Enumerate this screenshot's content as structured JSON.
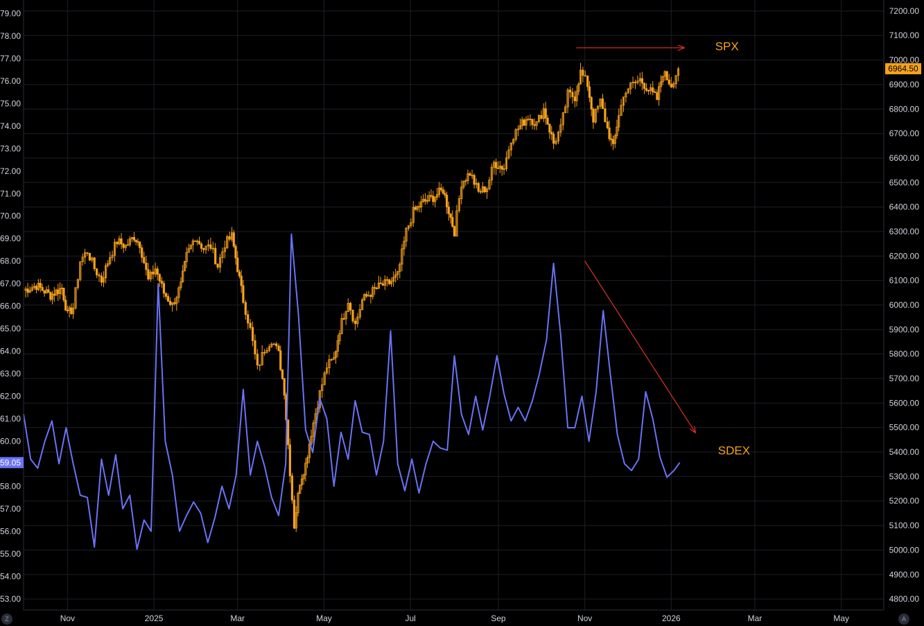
{
  "colors": {
    "background": "#000000",
    "grid": "#1c1f26",
    "axis_text": "#d1d4dc",
    "spx": "#f7a21b",
    "sdex": "#6a73f5",
    "arrow": "#e0302a",
    "spx_label_bg": "#f7a21b",
    "sdex_label_bg": "#6a73f5"
  },
  "corner_buttons": {
    "left": "Z",
    "right": "A"
  },
  "chart_data": {
    "type": "line",
    "x_ticks": [
      "Nov",
      "2025",
      "Mar",
      "May",
      "Jul",
      "Sep",
      "Nov",
      "2026",
      "Mar",
      "May"
    ],
    "x_tick_dates": [
      "2024-11-01",
      "2025-01-01",
      "2025-03-01",
      "2025-05-01",
      "2025-07-01",
      "2025-09-01",
      "2025-11-01",
      "2026-01-01",
      "2026-03-01",
      "2026-05-01"
    ],
    "left_axis": {
      "ticks": [
        "79.00",
        "78.00",
        "77.00",
        "76.00",
        "75.00",
        "74.00",
        "73.00",
        "72.00",
        "71.00",
        "70.00",
        "69.00",
        "68.00",
        "67.00",
        "66.00",
        "65.00",
        "64.00",
        "63.00",
        "62.00",
        "61.00",
        "60.00",
        "59.00",
        "58.00",
        "57.00",
        "56.00",
        "55.00",
        "54.00",
        "53.00"
      ],
      "ylim": [
        52.5,
        79.6
      ],
      "last_value_label": "59.05"
    },
    "right_axis": {
      "ticks": [
        "7200.00",
        "7100.00",
        "7000.00",
        "6900.00",
        "6800.00",
        "6700.00",
        "6600.00",
        "6500.00",
        "6400.00",
        "6300.00",
        "6200.00",
        "6100.00",
        "6000.00",
        "5900.00",
        "5800.00",
        "5700.00",
        "5600.00",
        "5500.00",
        "5400.00",
        "5300.00",
        "5200.00",
        "5100.00",
        "5000.00",
        "4900.00",
        "4800.00"
      ],
      "ylim": [
        4755,
        7245
      ],
      "last_value_label": "6964.50"
    },
    "series": [
      {
        "name": "SPX",
        "axis": "right",
        "style": "candles",
        "points": [
          [
            "2024-10-01",
            6060
          ],
          [
            "2024-10-10",
            6080
          ],
          [
            "2024-10-20",
            6040
          ],
          [
            "2024-10-28",
            6070
          ],
          [
            "2024-11-01",
            5960
          ],
          [
            "2024-11-05",
            5990
          ],
          [
            "2024-11-10",
            6180
          ],
          [
            "2024-11-15",
            6220
          ],
          [
            "2024-11-20",
            6150
          ],
          [
            "2024-11-25",
            6100
          ],
          [
            "2024-12-01",
            6200
          ],
          [
            "2024-12-06",
            6260
          ],
          [
            "2024-12-12",
            6240
          ],
          [
            "2024-12-18",
            6280
          ],
          [
            "2024-12-22",
            6250
          ],
          [
            "2024-12-28",
            6100
          ],
          [
            "2025-01-02",
            6150
          ],
          [
            "2025-01-08",
            6050
          ],
          [
            "2025-01-14",
            6000
          ],
          [
            "2025-01-20",
            6080
          ],
          [
            "2025-01-24",
            6200
          ],
          [
            "2025-01-30",
            6280
          ],
          [
            "2025-02-05",
            6230
          ],
          [
            "2025-02-10",
            6240
          ],
          [
            "2025-02-15",
            6160
          ],
          [
            "2025-02-20",
            6250
          ],
          [
            "2025-02-25",
            6280
          ],
          [
            "2025-03-01",
            6150
          ],
          [
            "2025-03-05",
            6020
          ],
          [
            "2025-03-10",
            5900
          ],
          [
            "2025-03-15",
            5740
          ],
          [
            "2025-03-20",
            5820
          ],
          [
            "2025-03-25",
            5860
          ],
          [
            "2025-03-30",
            5800
          ],
          [
            "2025-04-03",
            5650
          ],
          [
            "2025-04-07",
            5320
          ],
          [
            "2025-04-10",
            5100
          ],
          [
            "2025-04-14",
            5280
          ],
          [
            "2025-04-18",
            5350
          ],
          [
            "2025-04-22",
            5480
          ],
          [
            "2025-04-28",
            5640
          ],
          [
            "2025-05-03",
            5750
          ],
          [
            "2025-05-08",
            5780
          ],
          [
            "2025-05-12",
            5900
          ],
          [
            "2025-05-18",
            6020
          ],
          [
            "2025-05-23",
            5920
          ],
          [
            "2025-05-28",
            6020
          ],
          [
            "2025-06-03",
            6050
          ],
          [
            "2025-06-10",
            6080
          ],
          [
            "2025-06-16",
            6090
          ],
          [
            "2025-06-22",
            6120
          ],
          [
            "2025-06-28",
            6300
          ],
          [
            "2025-07-03",
            6380
          ],
          [
            "2025-07-10",
            6420
          ],
          [
            "2025-07-17",
            6440
          ],
          [
            "2025-07-24",
            6470
          ],
          [
            "2025-08-01",
            6300
          ],
          [
            "2025-08-06",
            6500
          ],
          [
            "2025-08-12",
            6540
          ],
          [
            "2025-08-18",
            6460
          ],
          [
            "2025-08-24",
            6480
          ],
          [
            "2025-08-29",
            6580
          ],
          [
            "2025-09-05",
            6560
          ],
          [
            "2025-09-10",
            6680
          ],
          [
            "2025-09-15",
            6720
          ],
          [
            "2025-09-22",
            6770
          ],
          [
            "2025-09-28",
            6740
          ],
          [
            "2025-10-03",
            6800
          ],
          [
            "2025-10-10",
            6660
          ],
          [
            "2025-10-15",
            6720
          ],
          [
            "2025-10-20",
            6860
          ],
          [
            "2025-10-25",
            6850
          ],
          [
            "2025-10-29",
            6950
          ],
          [
            "2025-11-03",
            6900
          ],
          [
            "2025-11-07",
            6760
          ],
          [
            "2025-11-12",
            6830
          ],
          [
            "2025-11-17",
            6720
          ],
          [
            "2025-11-21",
            6640
          ],
          [
            "2025-11-25",
            6780
          ],
          [
            "2025-11-30",
            6880
          ],
          [
            "2025-12-05",
            6900
          ],
          [
            "2025-12-10",
            6920
          ],
          [
            "2025-12-16",
            6880
          ],
          [
            "2025-12-22",
            6840
          ],
          [
            "2025-12-26",
            6950
          ],
          [
            "2026-01-01",
            6900
          ],
          [
            "2026-01-06",
            6964.5
          ]
        ]
      },
      {
        "name": "SDEX",
        "axis": "left",
        "style": "line",
        "points": [
          [
            "2024-10-01",
            61.2
          ],
          [
            "2024-10-06",
            59.2
          ],
          [
            "2024-10-11",
            58.8
          ],
          [
            "2024-10-16",
            60.0
          ],
          [
            "2024-10-21",
            60.9
          ],
          [
            "2024-10-26",
            59.0
          ],
          [
            "2024-10-31",
            60.6
          ],
          [
            "2024-11-05",
            59.0
          ],
          [
            "2024-11-10",
            57.6
          ],
          [
            "2024-11-15",
            57.5
          ],
          [
            "2024-11-20",
            55.3
          ],
          [
            "2024-11-25",
            59.2
          ],
          [
            "2024-11-30",
            57.6
          ],
          [
            "2024-12-05",
            59.4
          ],
          [
            "2024-12-10",
            57.0
          ],
          [
            "2024-12-15",
            57.6
          ],
          [
            "2024-12-20",
            55.2
          ],
          [
            "2024-12-25",
            56.5
          ],
          [
            "2024-12-30",
            56.0
          ],
          [
            "2025-01-04",
            67.0
          ],
          [
            "2025-01-09",
            60.0
          ],
          [
            "2025-01-14",
            58.5
          ],
          [
            "2025-01-19",
            56.0
          ],
          [
            "2025-01-24",
            56.7
          ],
          [
            "2025-01-29",
            57.3
          ],
          [
            "2025-02-03",
            56.8
          ],
          [
            "2025-02-08",
            55.5
          ],
          [
            "2025-02-13",
            56.6
          ],
          [
            "2025-02-18",
            58.0
          ],
          [
            "2025-02-23",
            57.0
          ],
          [
            "2025-02-28",
            58.5
          ],
          [
            "2025-03-05",
            62.3
          ],
          [
            "2025-03-10",
            58.5
          ],
          [
            "2025-03-15",
            60.0
          ],
          [
            "2025-03-20",
            58.9
          ],
          [
            "2025-03-25",
            57.5
          ],
          [
            "2025-03-30",
            56.7
          ],
          [
            "2025-04-04",
            59.0
          ],
          [
            "2025-04-08",
            69.2
          ],
          [
            "2025-04-13",
            65.6
          ],
          [
            "2025-04-18",
            60.5
          ],
          [
            "2025-04-23",
            59.5
          ],
          [
            "2025-04-28",
            61.9
          ],
          [
            "2025-05-03",
            61.0
          ],
          [
            "2025-05-08",
            58.0
          ],
          [
            "2025-05-13",
            60.4
          ],
          [
            "2025-05-18",
            59.2
          ],
          [
            "2025-05-23",
            61.8
          ],
          [
            "2025-05-28",
            60.4
          ],
          [
            "2025-06-02",
            60.3
          ],
          [
            "2025-06-07",
            58.5
          ],
          [
            "2025-06-12",
            60.0
          ],
          [
            "2025-06-17",
            64.9
          ],
          [
            "2025-06-22",
            59.0
          ],
          [
            "2025-06-27",
            57.8
          ],
          [
            "2025-07-02",
            59.2
          ],
          [
            "2025-07-07",
            57.7
          ],
          [
            "2025-07-12",
            59.0
          ],
          [
            "2025-07-17",
            60.0
          ],
          [
            "2025-07-22",
            59.7
          ],
          [
            "2025-07-27",
            59.6
          ],
          [
            "2025-08-01",
            63.8
          ],
          [
            "2025-08-06",
            61.2
          ],
          [
            "2025-08-11",
            60.3
          ],
          [
            "2025-08-16",
            62.0
          ],
          [
            "2025-08-21",
            60.5
          ],
          [
            "2025-08-26",
            62.0
          ],
          [
            "2025-08-31",
            63.8
          ],
          [
            "2025-09-05",
            62.1
          ],
          [
            "2025-09-10",
            60.9
          ],
          [
            "2025-09-15",
            61.5
          ],
          [
            "2025-09-20",
            60.9
          ],
          [
            "2025-09-25",
            61.8
          ],
          [
            "2025-09-30",
            63.0
          ],
          [
            "2025-10-05",
            64.5
          ],
          [
            "2025-10-10",
            67.9
          ],
          [
            "2025-10-15",
            64.7
          ],
          [
            "2025-10-20",
            60.6
          ],
          [
            "2025-10-25",
            60.6
          ],
          [
            "2025-10-30",
            62.0
          ],
          [
            "2025-11-04",
            60.0
          ],
          [
            "2025-11-09",
            62.2
          ],
          [
            "2025-11-14",
            65.8
          ],
          [
            "2025-11-19",
            63.0
          ],
          [
            "2025-11-24",
            60.3
          ],
          [
            "2025-11-29",
            59.0
          ],
          [
            "2025-12-04",
            58.7
          ],
          [
            "2025-12-09",
            59.2
          ],
          [
            "2025-12-14",
            62.2
          ],
          [
            "2025-12-19",
            61.0
          ],
          [
            "2025-12-24",
            59.3
          ],
          [
            "2025-12-29",
            58.4
          ],
          [
            "2026-01-03",
            58.7
          ],
          [
            "2026-01-07",
            59.05
          ]
        ]
      }
    ],
    "annotations": [
      {
        "kind": "arrow",
        "color": "#e0302a",
        "from": [
          "2025-10-26",
          7050
        ],
        "to": [
          "2026-01-10",
          7050
        ],
        "axis": "right"
      },
      {
        "kind": "arrow",
        "color": "#e0302a",
        "from": [
          "2025-11-01",
          6180
        ],
        "to": [
          "2026-01-18",
          5480
        ],
        "axis": "right"
      },
      {
        "kind": "text",
        "text": "SPX",
        "color": "#f7a21b",
        "at": [
          "2026-02-01",
          7040
        ],
        "axis": "right"
      },
      {
        "kind": "text",
        "text": "SDEX",
        "color": "#f7a21b",
        "at": [
          "2026-02-03",
          5390
        ],
        "axis": "right"
      }
    ],
    "grid": true,
    "legend": "none"
  }
}
